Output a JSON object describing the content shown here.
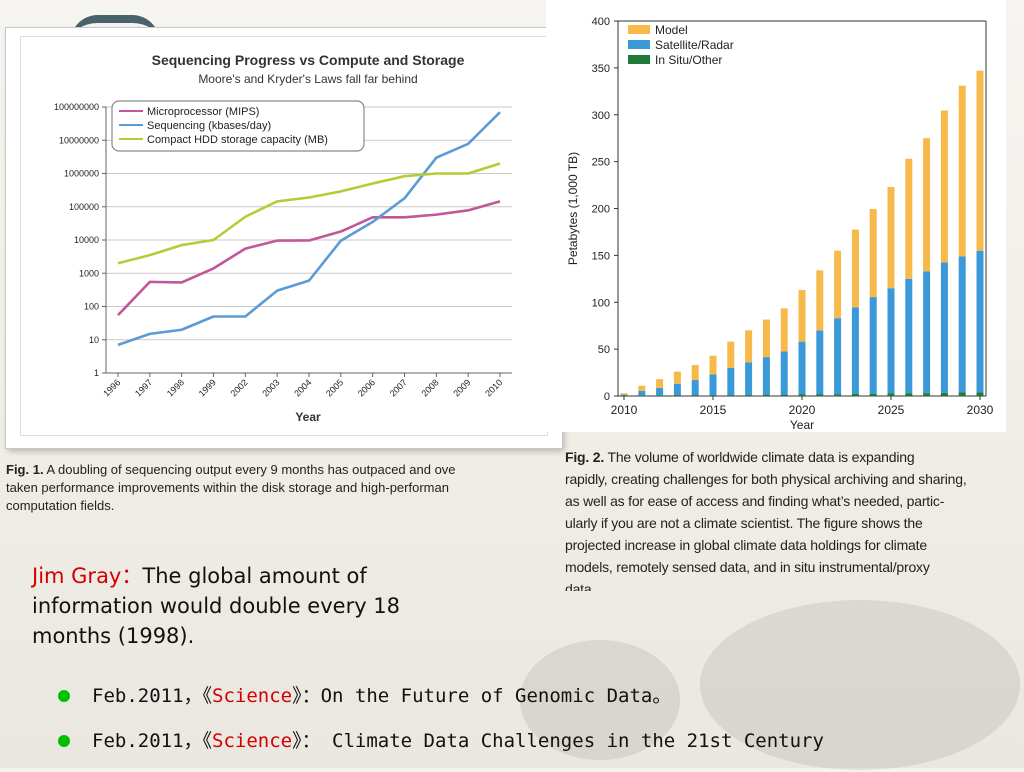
{
  "fig1": {
    "caption_label": "Fig. 1.",
    "caption_text": " A doubling of sequencing output every 9 months has outpaced and ove\ntaken performance improvements within the disk storage and high-performan\ncomputation fields.",
    "chart_data": {
      "type": "line",
      "title": "Sequencing Progress vs Compute and Storage",
      "subtitle": "Moore's and Kryder's Laws fall far behind",
      "xlabel": "Year",
      "ylabel": "",
      "y_scale": "log",
      "ylim": [
        1,
        100000000
      ],
      "yticks": [
        "100000000",
        "10000000",
        "1000000",
        "100000",
        "10000",
        "1000",
        "100",
        "10",
        "1"
      ],
      "categories": [
        "1996",
        "1997",
        "1998",
        "1999",
        "2002",
        "2003",
        "2004",
        "2005",
        "2006",
        "2007",
        "2008",
        "2009",
        "2010"
      ],
      "grid": true,
      "legend_position": "top-left",
      "series": [
        {
          "name": "Microprocessor (MIPS)",
          "color": "#c2569a",
          "values": [
            55,
            550,
            530,
            1400,
            5500,
            9600,
            9700,
            18000,
            48000,
            48000,
            58000,
            78000,
            145000
          ]
        },
        {
          "name": "Sequencing (kbases/day)",
          "color": "#5b9bd5",
          "values": [
            7,
            15,
            20,
            50,
            50,
            300,
            600,
            9500,
            35000,
            180000,
            3000000,
            7800000,
            70000000
          ]
        },
        {
          "name": "Compact HDD storage capacity (MB)",
          "color": "#b5cc34",
          "values": [
            2000,
            3500,
            7000,
            10000,
            50000,
            145000,
            190000,
            290000,
            500000,
            830000,
            1000000,
            1000000,
            2000000
          ]
        }
      ]
    }
  },
  "fig2": {
    "caption_label": "Fig. 2.",
    "caption_text": " The volume of worldwide climate data is expanding\nrapidly, creating challenges for both physical archiving and sharing,\nas well as for ease of access and finding what’s needed, partic-\nularly if you are not a climate scientist. The figure shows the\nprojected increase in global climate data holdings for climate\nmodels, remotely sensed data, and in situ instrumental/proxy\ndata.",
    "chart_data": {
      "type": "bar",
      "stacked": true,
      "xlabel": "Year",
      "ylabel": "Petabytes (1,000 TB)",
      "xlim": [
        2010,
        2030
      ],
      "ylim": [
        0,
        400
      ],
      "xticks": [
        "2010",
        "2015",
        "2020",
        "2025",
        "2030"
      ],
      "yticks": [
        "0",
        "50",
        "100",
        "150",
        "200",
        "250",
        "300",
        "350",
        "400"
      ],
      "legend_position": "top-left",
      "x": [
        2010,
        2011,
        2012,
        2013,
        2014,
        2015,
        2016,
        2017,
        2018,
        2019,
        2020,
        2021,
        2022,
        2023,
        2024,
        2025,
        2026,
        2027,
        2028,
        2029,
        2030
      ],
      "series": [
        {
          "name": "In Situ/Other",
          "color": "#1f7a3a",
          "values": [
            0.5,
            0.5,
            0.5,
            1,
            1,
            1,
            1,
            1,
            1.5,
            1.5,
            2,
            2,
            2,
            2.5,
            2.5,
            3,
            3,
            3,
            3.5,
            4,
            4
          ]
        },
        {
          "name": "Satellite/Radar",
          "color": "#3a9ad9",
          "values": [
            1,
            5,
            8,
            12,
            16,
            22,
            29,
            35,
            40,
            46,
            56,
            68,
            81,
            92,
            103,
            112,
            122,
            130,
            139,
            145,
            151
          ]
        },
        {
          "name": "Model",
          "color": "#f6b94a",
          "values": [
            1.5,
            5.5,
            9.5,
            13,
            16,
            20,
            28,
            34,
            40,
            46,
            55,
            64,
            72,
            83,
            94,
            108,
            128,
            142,
            162,
            182,
            192
          ]
        }
      ]
    }
  },
  "quote": {
    "who": "Jim Gray：",
    "text": "The global amount of information would double every 18 months (1998)."
  },
  "bullets": [
    {
      "pre": "Feb.2011，《",
      "mag": "Science",
      "post": "》：On the Future of Genomic Data。"
    },
    {
      "pre": "Feb.2011，《",
      "mag": "Science",
      "post": "》： Climate Data Challenges in the 21st Century"
    }
  ]
}
